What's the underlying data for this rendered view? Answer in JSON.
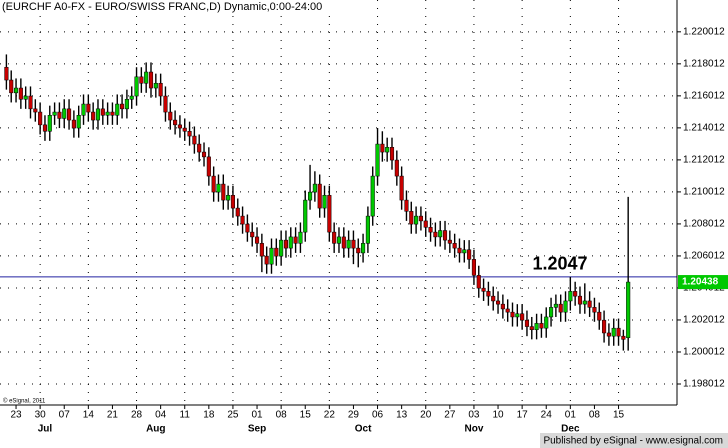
{
  "chart_data": {
    "type": "candlestick",
    "title": "(EURCHF A0-FX - EURO/SWISS FRANC,D) Dynamic,0:00-24:00",
    "copyright": "© eSignal, 2011",
    "footer": "Published by eSignal - www.esignal.com",
    "up_color": "#00c800",
    "down_color": "#c80000",
    "grid": true,
    "ylim": [
      1.1967,
      1.222
    ],
    "yticks": [
      1.220012,
      1.218012,
      1.216012,
      1.214012,
      1.212012,
      1.210012,
      1.208012,
      1.206012,
      1.204012,
      1.202012,
      1.200012,
      1.198012
    ],
    "reference_line": {
      "value": 1.2047,
      "label": "1.2047",
      "color": "#2020a0"
    },
    "categories": [
      null,
      null,
      "23",
      null,
      null,
      null,
      null,
      "30",
      null,
      null,
      null,
      null,
      "07",
      null,
      null,
      null,
      null,
      "14",
      null,
      null,
      null,
      null,
      "21",
      null,
      null,
      null,
      null,
      "28",
      null,
      null,
      null,
      null,
      "04",
      null,
      null,
      null,
      null,
      "11",
      null,
      null,
      null,
      null,
      "18",
      null,
      null,
      null,
      null,
      "25",
      null,
      null,
      null,
      null,
      "01",
      null,
      null,
      null,
      null,
      "08",
      null,
      null,
      null,
      null,
      "15",
      null,
      null,
      null,
      null,
      "22",
      null,
      null,
      null,
      null,
      "29",
      null,
      null,
      null,
      null,
      "06",
      null,
      null,
      null,
      null,
      "13",
      null,
      null,
      null,
      null,
      "20",
      null,
      null,
      null,
      null,
      "27",
      null,
      null,
      null,
      null,
      "03",
      null,
      null,
      null,
      null,
      "10",
      null,
      null,
      null,
      null,
      "17",
      null,
      null,
      null,
      null,
      "24",
      null,
      null,
      null,
      null,
      "01",
      null,
      null,
      null,
      null,
      "08",
      null,
      null,
      null,
      null,
      "15",
      null,
      null
    ],
    "months": [
      null,
      null,
      null,
      null,
      null,
      null,
      null,
      null,
      "Jul",
      null,
      null,
      null,
      null,
      null,
      null,
      null,
      null,
      null,
      null,
      null,
      null,
      null,
      null,
      null,
      null,
      null,
      null,
      null,
      null,
      null,
      null,
      "Aug",
      null,
      null,
      null,
      null,
      null,
      null,
      null,
      null,
      null,
      null,
      null,
      null,
      null,
      null,
      null,
      null,
      null,
      null,
      null,
      null,
      "Sep",
      null,
      null,
      null,
      null,
      null,
      null,
      null,
      null,
      null,
      null,
      null,
      null,
      null,
      null,
      null,
      null,
      null,
      null,
      null,
      null,
      null,
      "Oct",
      null,
      null,
      null,
      null,
      null,
      null,
      null,
      null,
      null,
      null,
      null,
      null,
      null,
      null,
      null,
      null,
      null,
      null,
      null,
      null,
      null,
      null,
      "Nov",
      null,
      null,
      null,
      null,
      null,
      null,
      null,
      null,
      null,
      null,
      null,
      null,
      null,
      null,
      null,
      null,
      null,
      null,
      null,
      "Dec",
      null,
      null,
      null,
      null,
      null,
      null,
      null,
      null,
      null,
      null,
      null,
      null
    ],
    "open": [
      1.2178,
      1.217,
      1.2162,
      1.2165,
      1.2158,
      1.216,
      1.2152,
      1.215,
      1.2142,
      1.2138,
      1.2148,
      1.215,
      1.2146,
      1.2152,
      1.2145,
      1.214,
      1.2148,
      1.2155,
      1.215,
      1.2145,
      1.2152,
      1.2148,
      1.215,
      1.2148,
      1.2155,
      1.2152,
      1.2158,
      1.216,
      1.2172,
      1.2168,
      1.2175,
      1.2165,
      1.2168,
      1.216,
      1.215,
      1.2145,
      1.2142,
      1.214,
      1.2138,
      1.2135,
      1.213,
      1.2125,
      1.2122,
      1.211,
      1.21,
      1.2105,
      1.2095,
      1.2098,
      1.209,
      1.2085,
      1.208,
      1.2075,
      1.2072,
      1.2068,
      1.206,
      1.2055,
      1.2065,
      1.206,
      1.207,
      1.2065,
      1.2072,
      1.2068,
      1.2075,
      1.2095,
      1.21,
      1.2105,
      1.209,
      1.2098,
      1.2075,
      1.2068,
      1.2072,
      1.2065,
      1.207,
      1.2065,
      1.2062,
      1.2068,
      1.2085,
      1.211,
      1.213,
      1.2125,
      1.2128,
      1.212,
      1.211,
      1.2095,
      1.2088,
      1.208,
      1.2085,
      1.2082,
      1.2078,
      1.2075,
      1.2072,
      1.2076,
      1.207,
      1.2068,
      1.2065,
      1.2062,
      1.2064,
      1.2058,
      1.2048,
      1.204,
      1.2038,
      1.2035,
      1.2032,
      1.203,
      1.2027,
      1.2025,
      1.2022,
      1.2024,
      1.202,
      1.2016,
      1.2014,
      1.2018,
      1.2015,
      1.2022,
      1.2028,
      1.203,
      1.2025,
      1.2032,
      1.2038,
      1.2035,
      1.203,
      1.2032,
      1.2028,
      1.2025,
      1.202,
      1.2012,
      1.201,
      1.2015,
      1.201,
      1.2009
    ],
    "high": [
      1.2186,
      1.2176,
      1.2171,
      1.2171,
      1.2166,
      1.2166,
      1.2158,
      1.2156,
      1.2148,
      1.2154,
      1.2156,
      1.2156,
      1.2158,
      1.2158,
      1.2151,
      1.2154,
      1.2161,
      1.2161,
      1.2156,
      1.2158,
      1.2158,
      1.2156,
      1.2156,
      1.2161,
      1.2161,
      1.2164,
      1.2166,
      1.2178,
      1.2178,
      1.2181,
      1.2181,
      1.2174,
      1.2174,
      1.2166,
      1.2156,
      1.2151,
      1.2148,
      1.2146,
      1.2144,
      1.2141,
      1.2136,
      1.2131,
      1.2128,
      1.2116,
      1.2111,
      1.2111,
      1.2104,
      1.2104,
      1.2096,
      1.2091,
      1.2086,
      1.2081,
      1.2078,
      1.2074,
      1.2066,
      1.2071,
      1.2071,
      1.2076,
      1.2076,
      1.2078,
      1.2078,
      1.2081,
      1.2101,
      1.2117,
      1.2113,
      1.2111,
      1.2104,
      1.2104,
      1.2081,
      1.2078,
      1.2078,
      1.2076,
      1.2076,
      1.2071,
      1.2074,
      1.2091,
      1.2116,
      1.214,
      1.2138,
      1.2134,
      1.2134,
      1.2126,
      1.2116,
      1.2101,
      1.2094,
      1.2091,
      1.2091,
      1.2088,
      1.2084,
      1.2081,
      1.2082,
      1.2082,
      1.2076,
      1.2074,
      1.2071,
      1.207,
      1.207,
      1.2064,
      1.2054,
      1.2046,
      1.2044,
      1.2041,
      1.2038,
      1.2036,
      1.2033,
      1.2031,
      1.203,
      1.203,
      1.2026,
      1.2022,
      1.2024,
      1.2024,
      1.2028,
      1.2034,
      1.2036,
      1.2036,
      1.2038,
      1.2047,
      1.2044,
      1.2041,
      1.2043,
      1.2038,
      1.2034,
      1.2031,
      1.2026,
      1.2018,
      1.2021,
      1.2021,
      1.2014,
      1.2097
    ],
    "low": [
      1.2164,
      1.2156,
      1.2156,
      1.2152,
      1.2152,
      1.2146,
      1.2144,
      1.2136,
      1.2132,
      1.2132,
      1.2142,
      1.214,
      1.214,
      1.2139,
      1.2134,
      1.2134,
      1.2142,
      1.2144,
      1.2139,
      1.2139,
      1.2142,
      1.2142,
      1.2142,
      1.2142,
      1.2146,
      1.2146,
      1.2152,
      1.2154,
      1.2162,
      1.2162,
      1.2159,
      1.2159,
      1.2154,
      1.2144,
      1.2139,
      1.2136,
      1.2134,
      1.2132,
      1.2129,
      1.2124,
      1.2119,
      1.2116,
      1.2104,
      1.2094,
      1.2094,
      1.2089,
      1.2089,
      1.2084,
      1.2079,
      1.2074,
      1.2069,
      1.2066,
      1.2062,
      1.205,
      1.2049,
      1.2049,
      1.2054,
      1.2054,
      1.2059,
      1.2059,
      1.2062,
      1.2062,
      1.2069,
      1.2089,
      1.2094,
      1.2084,
      1.2084,
      1.2069,
      1.2062,
      1.2062,
      1.2059,
      1.2059,
      1.2055,
      1.2053,
      1.2056,
      1.2062,
      1.2079,
      1.2104,
      1.2119,
      1.2119,
      1.2114,
      1.2104,
      1.2089,
      1.2082,
      1.2074,
      1.2074,
      1.2076,
      1.2072,
      1.2069,
      1.2066,
      1.2066,
      1.2064,
      1.2062,
      1.2059,
      1.2056,
      1.2056,
      1.2052,
      1.2042,
      1.2034,
      1.2032,
      1.2029,
      1.2026,
      1.2024,
      1.2021,
      1.2019,
      1.2016,
      1.2016,
      1.2014,
      1.201,
      1.2008,
      1.2008,
      1.2009,
      1.2009,
      1.2016,
      1.2022,
      1.2019,
      1.2019,
      1.2026,
      1.2029,
      1.2024,
      1.2024,
      1.2022,
      1.2019,
      1.2014,
      1.2006,
      1.2004,
      1.2004,
      1.2004,
      1.2001,
      1.2001
    ],
    "close": [
      1.217,
      1.2162,
      1.2165,
      1.2158,
      1.216,
      1.2152,
      1.215,
      1.2142,
      1.2138,
      1.2148,
      1.215,
      1.2146,
      1.2152,
      1.2145,
      1.214,
      1.2148,
      1.2155,
      1.215,
      1.2145,
      1.2152,
      1.2148,
      1.215,
      1.2148,
      1.2155,
      1.2152,
      1.2158,
      1.216,
      1.2172,
      1.2168,
      1.2175,
      1.2165,
      1.2168,
      1.216,
      1.215,
      1.2145,
      1.2142,
      1.214,
      1.2138,
      1.2135,
      1.213,
      1.2125,
      1.2122,
      1.211,
      1.21,
      1.2105,
      1.2095,
      1.2098,
      1.209,
      1.2085,
      1.208,
      1.2075,
      1.2072,
      1.2068,
      1.206,
      1.2055,
      1.2065,
      1.206,
      1.207,
      1.2065,
      1.2072,
      1.2068,
      1.2075,
      1.2095,
      1.21,
      1.2105,
      1.209,
      1.2098,
      1.2075,
      1.2068,
      1.2072,
      1.2065,
      1.207,
      1.2065,
      1.2062,
      1.2068,
      1.2085,
      1.211,
      1.213,
      1.2125,
      1.2128,
      1.212,
      1.211,
      1.2095,
      1.2088,
      1.208,
      1.2085,
      1.2082,
      1.2078,
      1.2075,
      1.2072,
      1.2076,
      1.207,
      1.2068,
      1.2065,
      1.2062,
      1.2064,
      1.2058,
      1.2048,
      1.204,
      1.2038,
      1.2035,
      1.2032,
      1.203,
      1.2027,
      1.2025,
      1.2022,
      1.2024,
      1.202,
      1.2016,
      1.2014,
      1.2018,
      1.2015,
      1.2022,
      1.2028,
      1.203,
      1.2025,
      1.2032,
      1.2038,
      1.2035,
      1.203,
      1.2032,
      1.2028,
      1.2025,
      1.202,
      1.2012,
      1.201,
      1.2015,
      1.201,
      1.2008,
      1.20438
    ]
  }
}
